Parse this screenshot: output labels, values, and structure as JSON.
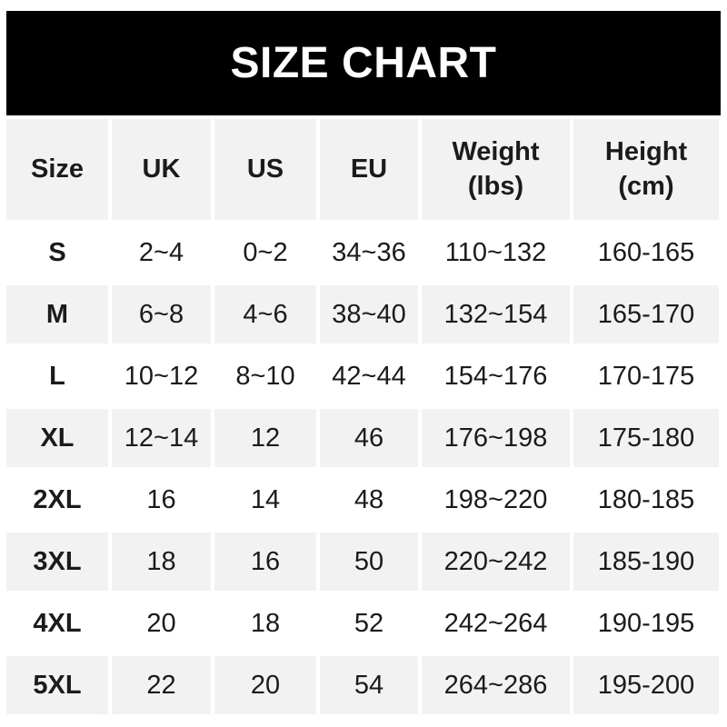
{
  "banner": {
    "title": "SIZE CHART"
  },
  "colors": {
    "banner_bg": "#000000",
    "banner_text": "#ffffff",
    "row_bg": "#ffffff",
    "row_alt_bg": "#f2f2f2",
    "text": "#1b1b1d",
    "page_bg": "#ffffff"
  },
  "chart_data": {
    "type": "table",
    "title": "SIZE CHART",
    "legend_position": "none",
    "grid": "off",
    "columns": [
      {
        "label": "Size",
        "sublabel": ""
      },
      {
        "label": "UK",
        "sublabel": ""
      },
      {
        "label": "US",
        "sublabel": ""
      },
      {
        "label": "EU",
        "sublabel": ""
      },
      {
        "label": "Weight",
        "sublabel": "(lbs)"
      },
      {
        "label": "Height",
        "sublabel": "(cm)"
      }
    ],
    "rows": [
      {
        "size": "S",
        "uk": "2~4",
        "us": "0~2",
        "eu": "34~36",
        "weight": "110~132",
        "height": "160-165"
      },
      {
        "size": "M",
        "uk": "6~8",
        "us": "4~6",
        "eu": "38~40",
        "weight": "132~154",
        "height": "165-170"
      },
      {
        "size": "L",
        "uk": "10~12",
        "us": "8~10",
        "eu": "42~44",
        "weight": "154~176",
        "height": "170-175"
      },
      {
        "size": "XL",
        "uk": "12~14",
        "us": "12",
        "eu": "46",
        "weight": "176~198",
        "height": "175-180"
      },
      {
        "size": "2XL",
        "uk": "16",
        "us": "14",
        "eu": "48",
        "weight": "198~220",
        "height": "180-185"
      },
      {
        "size": "3XL",
        "uk": "18",
        "us": "16",
        "eu": "50",
        "weight": "220~242",
        "height": "185-190"
      },
      {
        "size": "4XL",
        "uk": "20",
        "us": "18",
        "eu": "52",
        "weight": "242~264",
        "height": "190-195"
      },
      {
        "size": "5XL",
        "uk": "22",
        "us": "20",
        "eu": "54",
        "weight": "264~286",
        "height": "195-200"
      }
    ]
  }
}
